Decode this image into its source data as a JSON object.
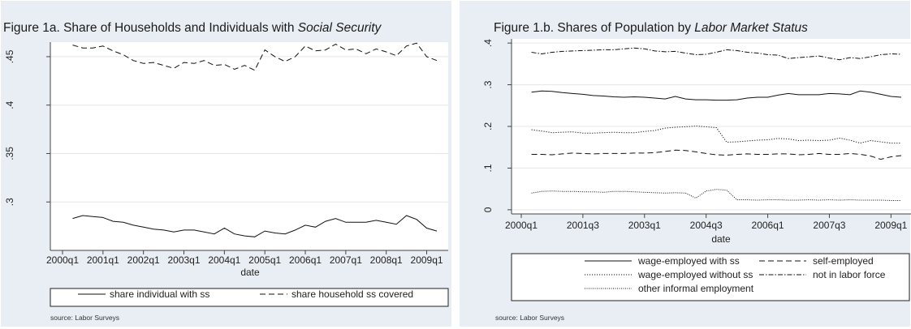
{
  "chart_data": [
    {
      "type": "line",
      "title": "Figure 1a. Share of Households and Individuals with ",
      "title_italic": "Social Security",
      "xlabel": "date",
      "ylabel": "",
      "xlim": [
        "2000q1",
        "2009q2"
      ],
      "ylim": [
        0.25,
        0.465
      ],
      "x_ticks": [
        "2000q1",
        "2001q1",
        "2002q1",
        "2003q1",
        "2004q1",
        "2005q1",
        "2006q1",
        "2007q1",
        "2008q1",
        "2009q1"
      ],
      "y_ticks": [
        ".3",
        ".35",
        ".4",
        ".45"
      ],
      "grid": true,
      "legend_position": "bottom",
      "source": "source: Labor Surveys",
      "x": [
        "2000q2",
        "2000q3",
        "2000q4",
        "2001q1",
        "2001q2",
        "2001q3",
        "2001q4",
        "2002q1",
        "2002q2",
        "2002q3",
        "2002q4",
        "2003q1",
        "2003q2",
        "2003q3",
        "2003q4",
        "2004q1",
        "2004q2",
        "2004q3",
        "2004q4",
        "2005q1",
        "2005q2",
        "2005q3",
        "2005q4",
        "2006q1",
        "2006q2",
        "2006q3",
        "2006q4",
        "2007q1",
        "2007q2",
        "2007q3",
        "2007q4",
        "2008q1",
        "2008q2",
        "2008q3",
        "2008q4",
        "2009q1",
        "2009q2"
      ],
      "series": [
        {
          "name": "share individual with ss",
          "dash": "solid",
          "values": [
            0.283,
            0.286,
            0.285,
            0.284,
            0.28,
            0.279,
            0.276,
            0.274,
            0.272,
            0.271,
            0.269,
            0.271,
            0.271,
            0.269,
            0.267,
            0.273,
            0.267,
            0.265,
            0.264,
            0.27,
            0.268,
            0.267,
            0.271,
            0.276,
            0.274,
            0.28,
            0.283,
            0.279,
            0.279,
            0.279,
            0.281,
            0.279,
            0.277,
            0.286,
            0.282,
            0.273,
            0.27
          ]
        },
        {
          "name": "share household ss covered",
          "dash": "dashed",
          "values": [
            0.462,
            0.459,
            0.459,
            0.461,
            0.456,
            0.452,
            0.446,
            0.443,
            0.444,
            0.441,
            0.438,
            0.444,
            0.443,
            0.446,
            0.441,
            0.442,
            0.437,
            0.441,
            0.436,
            0.457,
            0.45,
            0.445,
            0.45,
            0.461,
            0.456,
            0.457,
            0.463,
            0.457,
            0.458,
            0.453,
            0.458,
            0.455,
            0.451,
            0.461,
            0.464,
            0.45,
            0.446
          ]
        }
      ]
    },
    {
      "type": "line",
      "title": "Figure 1.b. Shares of Population by ",
      "title_italic": "Labor Market Status",
      "xlabel": "date",
      "ylabel": "",
      "xlim": [
        "2000q1",
        "2009q2"
      ],
      "ylim": [
        -0.01,
        0.41
      ],
      "x_ticks": [
        "2000q1",
        "2001q3",
        "2003q1",
        "2004q3",
        "2006q1",
        "2007q3",
        "2009q1"
      ],
      "y_ticks": [
        "0",
        ".1",
        ".2",
        ".3",
        ".4"
      ],
      "grid": true,
      "legend_position": "bottom",
      "source": "source: Labor Surveys",
      "x": [
        "2000q2",
        "2000q3",
        "2000q4",
        "2001q1",
        "2001q2",
        "2001q3",
        "2001q4",
        "2002q1",
        "2002q2",
        "2002q3",
        "2002q4",
        "2003q1",
        "2003q2",
        "2003q3",
        "2003q4",
        "2004q1",
        "2004q2",
        "2004q3",
        "2004q4",
        "2005q1",
        "2005q2",
        "2005q3",
        "2005q4",
        "2006q1",
        "2006q2",
        "2006q3",
        "2006q4",
        "2007q1",
        "2007q2",
        "2007q3",
        "2007q4",
        "2008q1",
        "2008q2",
        "2008q3",
        "2008q4",
        "2009q1",
        "2009q2"
      ],
      "series": [
        {
          "name": "wage-employed with ss",
          "dash": "solid",
          "values": [
            0.282,
            0.285,
            0.284,
            0.281,
            0.279,
            0.277,
            0.274,
            0.273,
            0.271,
            0.27,
            0.271,
            0.27,
            0.268,
            0.266,
            0.272,
            0.266,
            0.264,
            0.264,
            0.263,
            0.263,
            0.264,
            0.268,
            0.27,
            0.27,
            0.275,
            0.279,
            0.276,
            0.276,
            0.276,
            0.279,
            0.278,
            0.276,
            0.285,
            0.282,
            0.277,
            0.272,
            0.27
          ]
        },
        {
          "name": "self-employed",
          "dash": "dashed",
          "values": [
            0.133,
            0.133,
            0.132,
            0.134,
            0.136,
            0.135,
            0.134,
            0.135,
            0.135,
            0.135,
            0.136,
            0.136,
            0.137,
            0.14,
            0.143,
            0.142,
            0.139,
            0.135,
            0.132,
            0.131,
            0.133,
            0.134,
            0.133,
            0.133,
            0.134,
            0.134,
            0.132,
            0.133,
            0.135,
            0.133,
            0.133,
            0.135,
            0.133,
            0.129,
            0.121,
            0.127,
            0.13
          ]
        },
        {
          "name": "wage-employed  without ss",
          "dash": "dotted",
          "values": [
            0.192,
            0.189,
            0.185,
            0.186,
            0.187,
            0.184,
            0.184,
            0.185,
            0.186,
            0.185,
            0.185,
            0.188,
            0.19,
            0.196,
            0.198,
            0.199,
            0.201,
            0.199,
            0.197,
            0.162,
            0.163,
            0.165,
            0.167,
            0.168,
            0.171,
            0.17,
            0.166,
            0.167,
            0.166,
            0.167,
            0.172,
            0.167,
            0.16,
            0.166,
            0.163,
            0.16,
            0.16
          ]
        },
        {
          "name": "not in labor force",
          "dash": "dashdot",
          "values": [
            0.378,
            0.374,
            0.378,
            0.38,
            0.381,
            0.382,
            0.383,
            0.384,
            0.384,
            0.386,
            0.388,
            0.386,
            0.381,
            0.379,
            0.38,
            0.376,
            0.372,
            0.373,
            0.378,
            0.384,
            0.382,
            0.378,
            0.376,
            0.372,
            0.371,
            0.363,
            0.365,
            0.367,
            0.369,
            0.364,
            0.36,
            0.365,
            0.363,
            0.367,
            0.372,
            0.374,
            0.373
          ]
        },
        {
          "name": "other informal employment",
          "dash": "densedot",
          "values": [
            0.04,
            0.044,
            0.045,
            0.044,
            0.044,
            0.043,
            0.043,
            0.042,
            0.044,
            0.044,
            0.043,
            0.042,
            0.041,
            0.04,
            0.041,
            0.04,
            0.028,
            0.045,
            0.049,
            0.047,
            0.024,
            0.024,
            0.023,
            0.024,
            0.024,
            0.023,
            0.023,
            0.024,
            0.023,
            0.024,
            0.023,
            0.024,
            0.023,
            0.023,
            0.023,
            0.022,
            0.022
          ]
        }
      ]
    }
  ]
}
